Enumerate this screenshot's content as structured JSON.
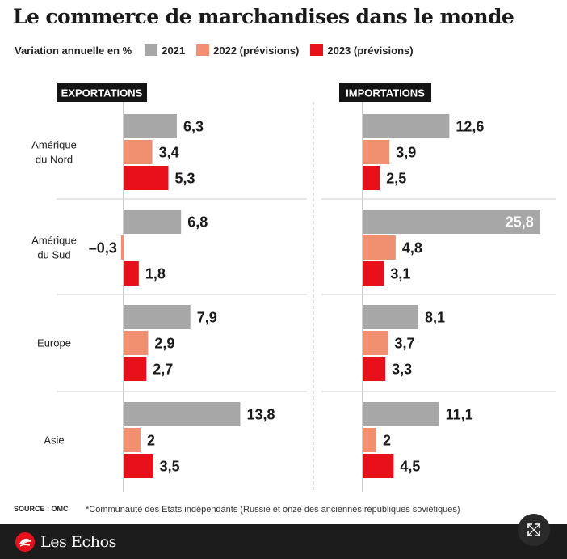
{
  "title": "Le commerce de marchandises dans le monde",
  "legend": {
    "label": "Variation annuelle en %",
    "items": [
      {
        "label": "2021",
        "color": "#a7a7a7"
      },
      {
        "label": "2022 (prévisions)",
        "color": "#f09070"
      },
      {
        "label": "2023 (prévisions)",
        "color": "#e8101a"
      }
    ]
  },
  "chart_data": {
    "type": "bar",
    "orientation": "horizontal",
    "categories": [
      "Amérique du Nord",
      "Amérique du Sud",
      "Europe",
      "Asie"
    ],
    "category_lines": [
      [
        "Amérique",
        "du Nord"
      ],
      [
        "Amérique",
        "du Sud"
      ],
      [
        "Europe"
      ],
      [
        "Asie"
      ]
    ],
    "panels": [
      {
        "name": "EXPORTATIONS",
        "series": [
          {
            "name": "2021",
            "values": [
              6.3,
              6.8,
              7.9,
              13.8
            ],
            "labels": [
              "6,3",
              "6,8",
              "7,9",
              "13,8"
            ]
          },
          {
            "name": "2022 (prévisions)",
            "values": [
              3.4,
              -0.3,
              2.9,
              2
            ],
            "labels": [
              "3,4",
              "–0,3",
              "2,9",
              "2"
            ]
          },
          {
            "name": "2023 (prévisions)",
            "values": [
              5.3,
              1.8,
              2.7,
              3.5
            ],
            "labels": [
              "5,3",
              "1,8",
              "2,7",
              "3,5"
            ]
          }
        ]
      },
      {
        "name": "IMPORTATIONS",
        "series": [
          {
            "name": "2021",
            "values": [
              12.6,
              25.8,
              8.1,
              11.1
            ],
            "labels": [
              "12,6",
              "25,8",
              "8,1",
              "11,1"
            ]
          },
          {
            "name": "2022 (prévisions)",
            "values": [
              3.9,
              4.8,
              3.7,
              2
            ],
            "labels": [
              "3,9",
              "4,8",
              "3,7",
              "2"
            ]
          },
          {
            "name": "2023 (prévisions)",
            "values": [
              2.5,
              3.1,
              3.3,
              4.5
            ],
            "labels": [
              "2,5",
              "3,1",
              "3,3",
              "4,5"
            ]
          }
        ]
      }
    ],
    "colors": [
      "#a7a7a7",
      "#f09070",
      "#e8101a"
    ]
  },
  "source": "SOURCE : OMC",
  "note": "*Communauté des Etats indépendants (Russie et onze des anciennes républiques soviétiques)",
  "brand": "Les Echos"
}
